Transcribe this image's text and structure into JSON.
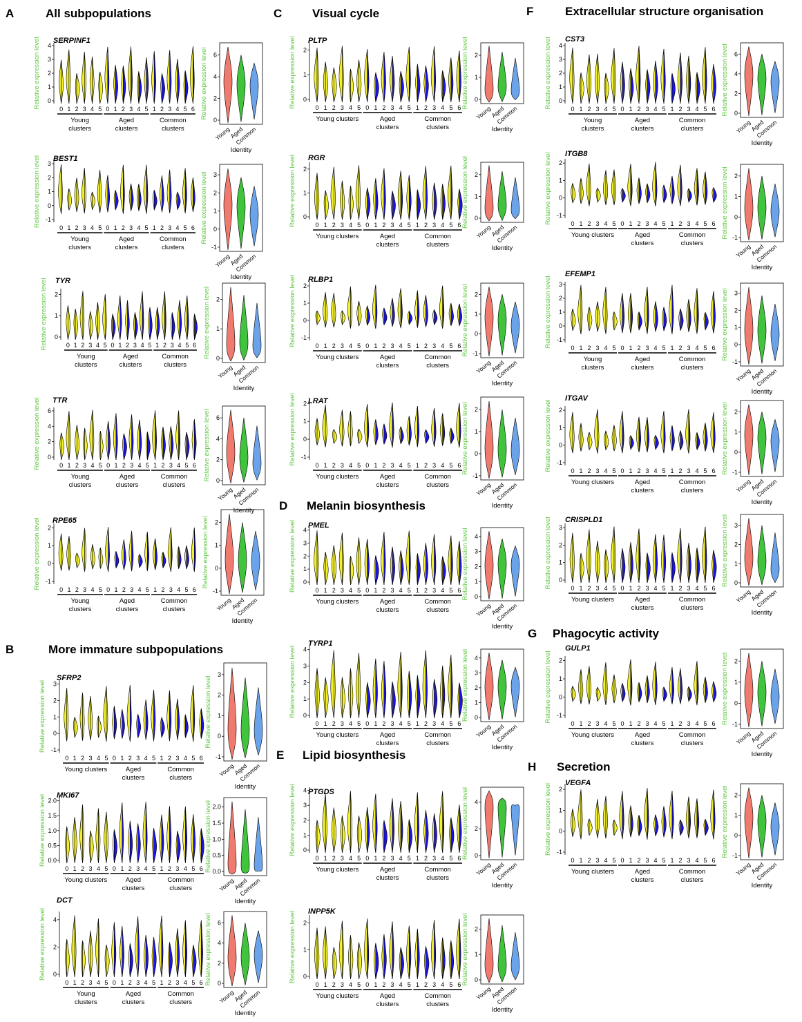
{
  "colors": {
    "young": "#f2f02a",
    "aged": "#1e14e6",
    "young_violin": "#f17a6f",
    "aged_violin": "#3fc43c",
    "common_violin": "#6aa3ea",
    "ylabel": "#5cc83f"
  },
  "labels": {
    "ylabel": "Relative expression level",
    "identity": "Identity",
    "young_axis": [
      "Young",
      "clusters"
    ],
    "aged_axis": [
      "Aged",
      "clusters"
    ],
    "common_axis": [
      "Common",
      "clusters"
    ],
    "young_axis_inline": "Young clusters",
    "groups": [
      "Young",
      "Aged",
      "Common"
    ]
  },
  "sections": [
    {
      "letter": "A",
      "title": "All subpopulations"
    },
    {
      "letter": "B",
      "title": "More immature subpopulations"
    },
    {
      "letter": "C",
      "title": "Visual cycle"
    },
    {
      "letter": "D",
      "title": "Melanin biosynthesis"
    },
    {
      "letter": "E",
      "title": "Lipid biosynthesis"
    },
    {
      "letter": "F",
      "title": "Extracellular structure organisation"
    },
    {
      "letter": "G",
      "title": "Phagocytic activity"
    },
    {
      "letter": "H",
      "title": "Secretion"
    }
  ],
  "chart_data": [
    {
      "type": "violin",
      "gene": "SERPINF1",
      "yticks": [
        "0",
        "1",
        "2",
        "3",
        "4"
      ],
      "ylim": [
        0,
        4.5
      ],
      "right_yticks": [
        "0",
        "2",
        "4",
        "6"
      ],
      "right_ylim": [
        0,
        6.5
      ],
      "clusters": {
        "young": [
          "0",
          "1",
          "2",
          "3",
          "4",
          "5"
        ],
        "aged": [
          "0",
          "1",
          "2",
          "3",
          "4",
          "5"
        ],
        "common": [
          "1",
          "2",
          "3",
          "4",
          "5",
          "6"
        ]
      },
      "group_medians": [
        3.5,
        3.3,
        3.3
      ]
    },
    {
      "type": "violin",
      "gene": "BEST1",
      "yticks": [
        "-1",
        "0",
        "1",
        "2",
        "3"
      ],
      "ylim": [
        -1,
        3.2
      ],
      "right_yticks": [
        "-1",
        "0",
        "1",
        "2",
        "3"
      ],
      "right_ylim": [
        -1,
        3.2
      ],
      "clusters": {
        "young": [
          "0",
          "1",
          "2",
          "3",
          "4",
          "5"
        ],
        "aged": [
          "0",
          "1",
          "2",
          "3",
          "4",
          "5"
        ],
        "common": [
          "1",
          "2",
          "3",
          "4",
          "5",
          "6"
        ]
      },
      "group_medians": [
        1.3,
        1.3,
        0.8
      ]
    },
    {
      "type": "violin",
      "gene": "TYR",
      "yticks": [
        "0",
        "1",
        "2"
      ],
      "ylim": [
        -0.2,
        2.4
      ],
      "right_yticks": [
        "0",
        "1",
        "2"
      ],
      "right_ylim": [
        -0.2,
        2.4
      ],
      "clusters": {
        "young": [
          "0",
          "1",
          "2",
          "3",
          "4",
          "5"
        ],
        "aged": [
          "0",
          "1",
          "2",
          "3",
          "4",
          "5"
        ],
        "common": [
          "1",
          "2",
          "3",
          "4",
          "5",
          "6"
        ]
      },
      "group_medians": [
        0.2,
        0.3,
        0.2
      ]
    },
    {
      "type": "violin",
      "gene": "TTR",
      "yticks": [
        "0",
        "2",
        "4",
        "6"
      ],
      "ylim": [
        0,
        6.5
      ],
      "right_yticks": [
        "0",
        "2",
        "4",
        "6"
      ],
      "right_ylim": [
        0,
        6.5
      ],
      "clusters": {
        "young": [
          "0",
          "1",
          "2",
          "3",
          "4",
          "5"
        ],
        "aged": [
          "0",
          "1",
          "2",
          "3",
          "4",
          "5"
        ],
        "common": [
          "1",
          "2",
          "3",
          "4",
          "5",
          "6"
        ]
      },
      "group_medians": [
        2.5,
        2.0,
        1.5
      ]
    },
    {
      "type": "violin",
      "gene": "RPE65",
      "yticks": [
        "-1",
        "0",
        "1",
        "2"
      ],
      "ylim": [
        -1.5,
        2.2
      ],
      "right_yticks": [
        "-1",
        "0",
        "1",
        "2"
      ],
      "right_ylim": [
        -1.5,
        2.3
      ],
      "clusters": {
        "young": [
          "0",
          "1",
          "2",
          "3",
          "4",
          "5"
        ],
        "aged": [
          "0",
          "1",
          "2",
          "3",
          "4",
          "5"
        ],
        "common": [
          "1",
          "2",
          "3",
          "4",
          "5",
          "6"
        ]
      },
      "group_medians": [
        0.0,
        0.0,
        0.0
      ]
    },
    {
      "type": "violin",
      "gene": "SFRP2",
      "yticks": [
        "-1",
        "0",
        "1",
        "2",
        "3"
      ],
      "ylim": [
        -1.3,
        3.2
      ],
      "right_yticks": [
        "-1",
        "0",
        "1",
        "2",
        "3"
      ],
      "right_ylim": [
        -1.2,
        3.2
      ],
      "clusters": {
        "young": [
          "0",
          "1",
          "2",
          "3",
          "4",
          "5"
        ],
        "aged": [
          "0",
          "1",
          "2",
          "3",
          "4",
          "5"
        ],
        "common": [
          "1",
          "2",
          "3",
          "4",
          "5",
          "6"
        ]
      },
      "group_medians": [
        0.0,
        0.0,
        0.0
      ]
    },
    {
      "type": "violin",
      "gene": "MKI67",
      "yticks": [
        "0.0",
        "0.5",
        "1.0",
        "1.5",
        "2.0"
      ],
      "ylim": [
        -0.1,
        2.2
      ],
      "right_yticks": [
        "0.0",
        "0.5",
        "1.0",
        "1.5",
        "2.0"
      ],
      "right_ylim": [
        -0.1,
        2.2
      ],
      "clusters": {
        "young": [
          "0",
          "1",
          "2",
          "3",
          "4",
          "5"
        ],
        "aged": [
          "0",
          "1",
          "2",
          "3",
          "4",
          "5"
        ],
        "common": [
          "1",
          "2",
          "3",
          "4",
          "5",
          "6"
        ]
      },
      "group_medians": [
        0.0,
        0.0,
        0.0
      ]
    },
    {
      "type": "violin",
      "gene": "DCT",
      "yticks": [
        "0",
        "2",
        "4"
      ],
      "ylim": [
        0,
        5
      ],
      "right_yticks": [
        "0",
        "2",
        "4",
        "6"
      ],
      "right_ylim": [
        0,
        6.5
      ],
      "clusters": {
        "young": [
          "0",
          "1",
          "2",
          "3",
          "4",
          "5"
        ],
        "aged": [
          "0",
          "1",
          "2",
          "3",
          "4",
          "5"
        ],
        "common": [
          "1",
          "2",
          "3",
          "4",
          "5",
          "6"
        ]
      },
      "group_medians": [
        2.3,
        2.5,
        2.8
      ]
    },
    {
      "type": "violin",
      "gene": "PLTP",
      "yticks": [
        "0",
        "1",
        "2"
      ],
      "ylim": [
        -0.3,
        2.3
      ],
      "right_yticks": [
        "0",
        "1",
        "2"
      ],
      "right_ylim": [
        -0.3,
        2.3
      ],
      "clusters": {
        "young": [
          "0",
          "1",
          "2",
          "3",
          "4",
          "5"
        ],
        "aged": [
          "0",
          "1",
          "2",
          "3",
          "4",
          "5"
        ],
        "common": [
          "1",
          "2",
          "3",
          "4",
          "5",
          "6"
        ]
      },
      "group_medians": [
        0.1,
        0.3,
        0.1
      ]
    },
    {
      "type": "violin",
      "gene": "RGR",
      "yticks": [
        "0",
        "1",
        "2"
      ],
      "ylim": [
        -0.3,
        2.3
      ],
      "right_yticks": [
        "0",
        "1",
        "2"
      ],
      "right_ylim": [
        -0.3,
        2.3
      ],
      "clusters": {
        "young": [
          "0",
          "1",
          "2",
          "3",
          "4",
          "5"
        ],
        "aged": [
          "0",
          "1",
          "2",
          "3",
          "4",
          "5"
        ],
        "common": [
          "1",
          "2",
          "3",
          "4",
          "5",
          "6"
        ]
      },
      "group_medians": [
        0.1,
        0.3,
        0.1
      ]
    },
    {
      "type": "violin",
      "gene": "RLBP1",
      "yticks": [
        "-1",
        "0",
        "1",
        "2"
      ],
      "ylim": [
        -1.1,
        2.3
      ],
      "right_yticks": [
        "-1",
        "0",
        "1",
        "2"
      ],
      "right_ylim": [
        -1.1,
        2.3
      ],
      "clusters": {
        "young": [
          "0",
          "1",
          "2",
          "3",
          "4",
          "5"
        ],
        "aged": [
          "0",
          "1",
          "2",
          "3",
          "4",
          "5"
        ],
        "common": [
          "1",
          "2",
          "3",
          "4",
          "5",
          "6"
        ]
      },
      "group_medians": [
        0.8,
        0.7,
        0.4
      ]
    },
    {
      "type": "violin",
      "gene": "LRAT",
      "yticks": [
        "-1",
        "0",
        "1",
        "2"
      ],
      "ylim": [
        -1.2,
        2.3
      ],
      "right_yticks": [
        "-1",
        "0",
        "1",
        "2"
      ],
      "right_ylim": [
        -1.2,
        2.3
      ],
      "clusters": {
        "young": [
          "0",
          "1",
          "2",
          "3",
          "4",
          "5"
        ],
        "aged": [
          "0",
          "1",
          "2",
          "3",
          "4",
          "5"
        ],
        "common": [
          "1",
          "2",
          "3",
          "4",
          "5",
          "6"
        ]
      },
      "group_medians": [
        0.0,
        0.0,
        0.0
      ]
    },
    {
      "type": "violin",
      "gene": "PMEL",
      "yticks": [
        "0",
        "1",
        "2",
        "3",
        "4"
      ],
      "ylim": [
        0,
        4.6
      ],
      "right_yticks": [
        "0",
        "1",
        "2",
        "3",
        "4"
      ],
      "right_ylim": [
        0,
        4.6
      ],
      "clusters": {
        "young": [
          "0",
          "1",
          "2",
          "3",
          "4",
          "5"
        ],
        "aged": [
          "0",
          "1",
          "2",
          "3",
          "4",
          "5"
        ],
        "common": [
          "1",
          "2",
          "3",
          "4",
          "5",
          "6"
        ]
      },
      "group_medians": [
        2.2,
        2.4,
        2.4
      ]
    },
    {
      "type": "violin",
      "gene": "TYRP1",
      "yticks": [
        "0",
        "1",
        "2",
        "3",
        "4"
      ],
      "ylim": [
        0,
        4.6
      ],
      "right_yticks": [
        "0",
        "1",
        "2",
        "3",
        "4"
      ],
      "right_ylim": [
        0,
        4.6
      ],
      "clusters": {
        "young": [
          "0",
          "1",
          "2",
          "3",
          "4",
          "5"
        ],
        "aged": [
          "0",
          "1",
          "2",
          "3",
          "4",
          "5"
        ],
        "common": [
          "1",
          "2",
          "3",
          "4",
          "5",
          "6"
        ]
      },
      "group_medians": [
        2.2,
        2.3,
        2.4
      ]
    },
    {
      "type": "violin",
      "gene": "PTGDS",
      "yticks": [
        "0",
        "1",
        "2",
        "3",
        "4"
      ],
      "ylim": [
        -0.2,
        4.8
      ],
      "right_yticks": [
        "0",
        "2",
        "4"
      ],
      "right_ylim": [
        -0.2,
        4.8
      ],
      "clusters": {
        "young": [
          "0",
          "1",
          "2",
          "3",
          "4",
          "5"
        ],
        "aged": [
          "0",
          "1",
          "2",
          "3",
          "4",
          "5"
        ],
        "common": [
          "1",
          "2",
          "3",
          "4",
          "5",
          "6"
        ]
      },
      "group_medians": [
        3.8,
        3.8,
        3.7
      ]
    },
    {
      "type": "violin",
      "gene": "INPP5K",
      "yticks": [
        "0",
        "1",
        "2"
      ],
      "ylim": [
        -0.6,
        2.2
      ],
      "right_yticks": [
        "0",
        "1",
        "2"
      ],
      "right_ylim": [
        -0.6,
        2.2
      ],
      "clusters": {
        "young": [
          "0",
          "1",
          "2",
          "3",
          "4",
          "5"
        ],
        "aged": [
          "0",
          "1",
          "2",
          "3",
          "4",
          "5"
        ],
        "common": [
          "1",
          "2",
          "3",
          "4",
          "5",
          "6"
        ]
      },
      "group_medians": [
        0.0,
        0.0,
        0.0
      ]
    },
    {
      "type": "violin",
      "gene": "CST3",
      "yticks": [
        "0",
        "1",
        "2",
        "3",
        "4"
      ],
      "ylim": [
        0,
        4.8
      ],
      "right_yticks": [
        "0",
        "2",
        "4",
        "6"
      ],
      "right_ylim": [
        0,
        6.3
      ],
      "clusters": {
        "young": [
          "0",
          "1",
          "2",
          "3",
          "4",
          "5"
        ],
        "aged": [
          "0",
          "1",
          "2",
          "3",
          "4",
          "5"
        ],
        "common": [
          "1",
          "2",
          "3",
          "4",
          "5",
          "6"
        ]
      },
      "group_medians": [
        3.8,
        3.5,
        3.2
      ]
    },
    {
      "type": "violin",
      "gene": "ITGB8",
      "yticks": [
        "-1",
        "0",
        "1",
        "2"
      ],
      "ylim": [
        -1.3,
        2.3
      ],
      "right_yticks": [
        "-1",
        "0",
        "1",
        "2"
      ],
      "right_ylim": [
        -1.3,
        2.3
      ],
      "clusters": {
        "young": [
          "0",
          "1",
          "2",
          "3",
          "4",
          "5"
        ],
        "aged": [
          "0",
          "1",
          "2",
          "3",
          "4",
          "5"
        ],
        "common": [
          "1",
          "2",
          "3",
          "4",
          "5",
          "6"
        ]
      },
      "group_medians": [
        0.2,
        0.3,
        0.1
      ]
    },
    {
      "type": "violin",
      "gene": "EFEMP1",
      "yticks": [
        "-1",
        "0",
        "1",
        "2",
        "3"
      ],
      "ylim": [
        -1.3,
        3.2
      ],
      "right_yticks": [
        "-1",
        "0",
        "1",
        "2",
        "3"
      ],
      "right_ylim": [
        -1.3,
        3.2
      ],
      "clusters": {
        "young": [
          "0",
          "1",
          "2",
          "3",
          "4",
          "5"
        ],
        "aged": [
          "0",
          "1",
          "2",
          "3",
          "4",
          "5"
        ],
        "common": [
          "1",
          "2",
          "3",
          "4",
          "5",
          "6"
        ]
      },
      "group_medians": [
        0.6,
        0.6,
        0.4
      ]
    },
    {
      "type": "violin",
      "gene": "ITGAV",
      "yticks": [
        "-1",
        "0",
        "1",
        "2"
      ],
      "ylim": [
        -1.2,
        2.3
      ],
      "right_yticks": [
        "-1",
        "0",
        "1",
        "2"
      ],
      "right_ylim": [
        -1.2,
        2.3
      ],
      "clusters": {
        "young": [
          "0",
          "1",
          "2",
          "3",
          "4",
          "5"
        ],
        "aged": [
          "0",
          "1",
          "2",
          "3",
          "4",
          "5"
        ],
        "common": [
          "1",
          "2",
          "3",
          "4",
          "5",
          "6"
        ]
      },
      "group_medians": [
        0.8,
        0.7,
        0.5
      ]
    },
    {
      "type": "violin",
      "gene": "CRISPLD1",
      "yticks": [
        "0",
        "1",
        "2",
        "3"
      ],
      "ylim": [
        -0.3,
        3.2
      ],
      "right_yticks": [
        "0",
        "1",
        "2",
        "3"
      ],
      "right_ylim": [
        -0.3,
        3.2
      ],
      "clusters": {
        "young": [
          "0",
          "1",
          "2",
          "3",
          "4",
          "5"
        ],
        "aged": [
          "0",
          "1",
          "2",
          "3",
          "4",
          "5"
        ],
        "common": [
          "1",
          "2",
          "3",
          "4",
          "5",
          "6"
        ]
      },
      "group_medians": [
        1.0,
        0.8,
        0.4
      ]
    },
    {
      "type": "violin",
      "gene": "GULP1",
      "yticks": [
        "-1",
        "0",
        "1",
        "2"
      ],
      "ylim": [
        -1.2,
        2.3
      ],
      "right_yticks": [
        "-1",
        "0",
        "1",
        "2"
      ],
      "right_ylim": [
        -1.2,
        2.3
      ],
      "clusters": {
        "young": [
          "0",
          "1",
          "2",
          "3",
          "4",
          "5"
        ],
        "aged": [
          "0",
          "1",
          "2",
          "3",
          "4",
          "5"
        ],
        "common": [
          "1",
          "2",
          "3",
          "4",
          "5",
          "6"
        ]
      },
      "group_medians": [
        0.4,
        0.4,
        0.2
      ]
    },
    {
      "type": "violin",
      "gene": "VEGFA",
      "yticks": [
        "-1",
        "0",
        "1",
        "2"
      ],
      "ylim": [
        -1.3,
        2.3
      ],
      "right_yticks": [
        "-1",
        "0",
        "1",
        "2"
      ],
      "right_ylim": [
        -1.3,
        2.3
      ],
      "clusters": {
        "young": [
          "0",
          "1",
          "2",
          "3",
          "4",
          "5"
        ],
        "aged": [
          "0",
          "1",
          "2",
          "3",
          "4",
          "5"
        ],
        "common": [
          "1",
          "2",
          "3",
          "4",
          "5",
          "6"
        ]
      },
      "group_medians": [
        0.8,
        0.6,
        0.3
      ]
    }
  ]
}
